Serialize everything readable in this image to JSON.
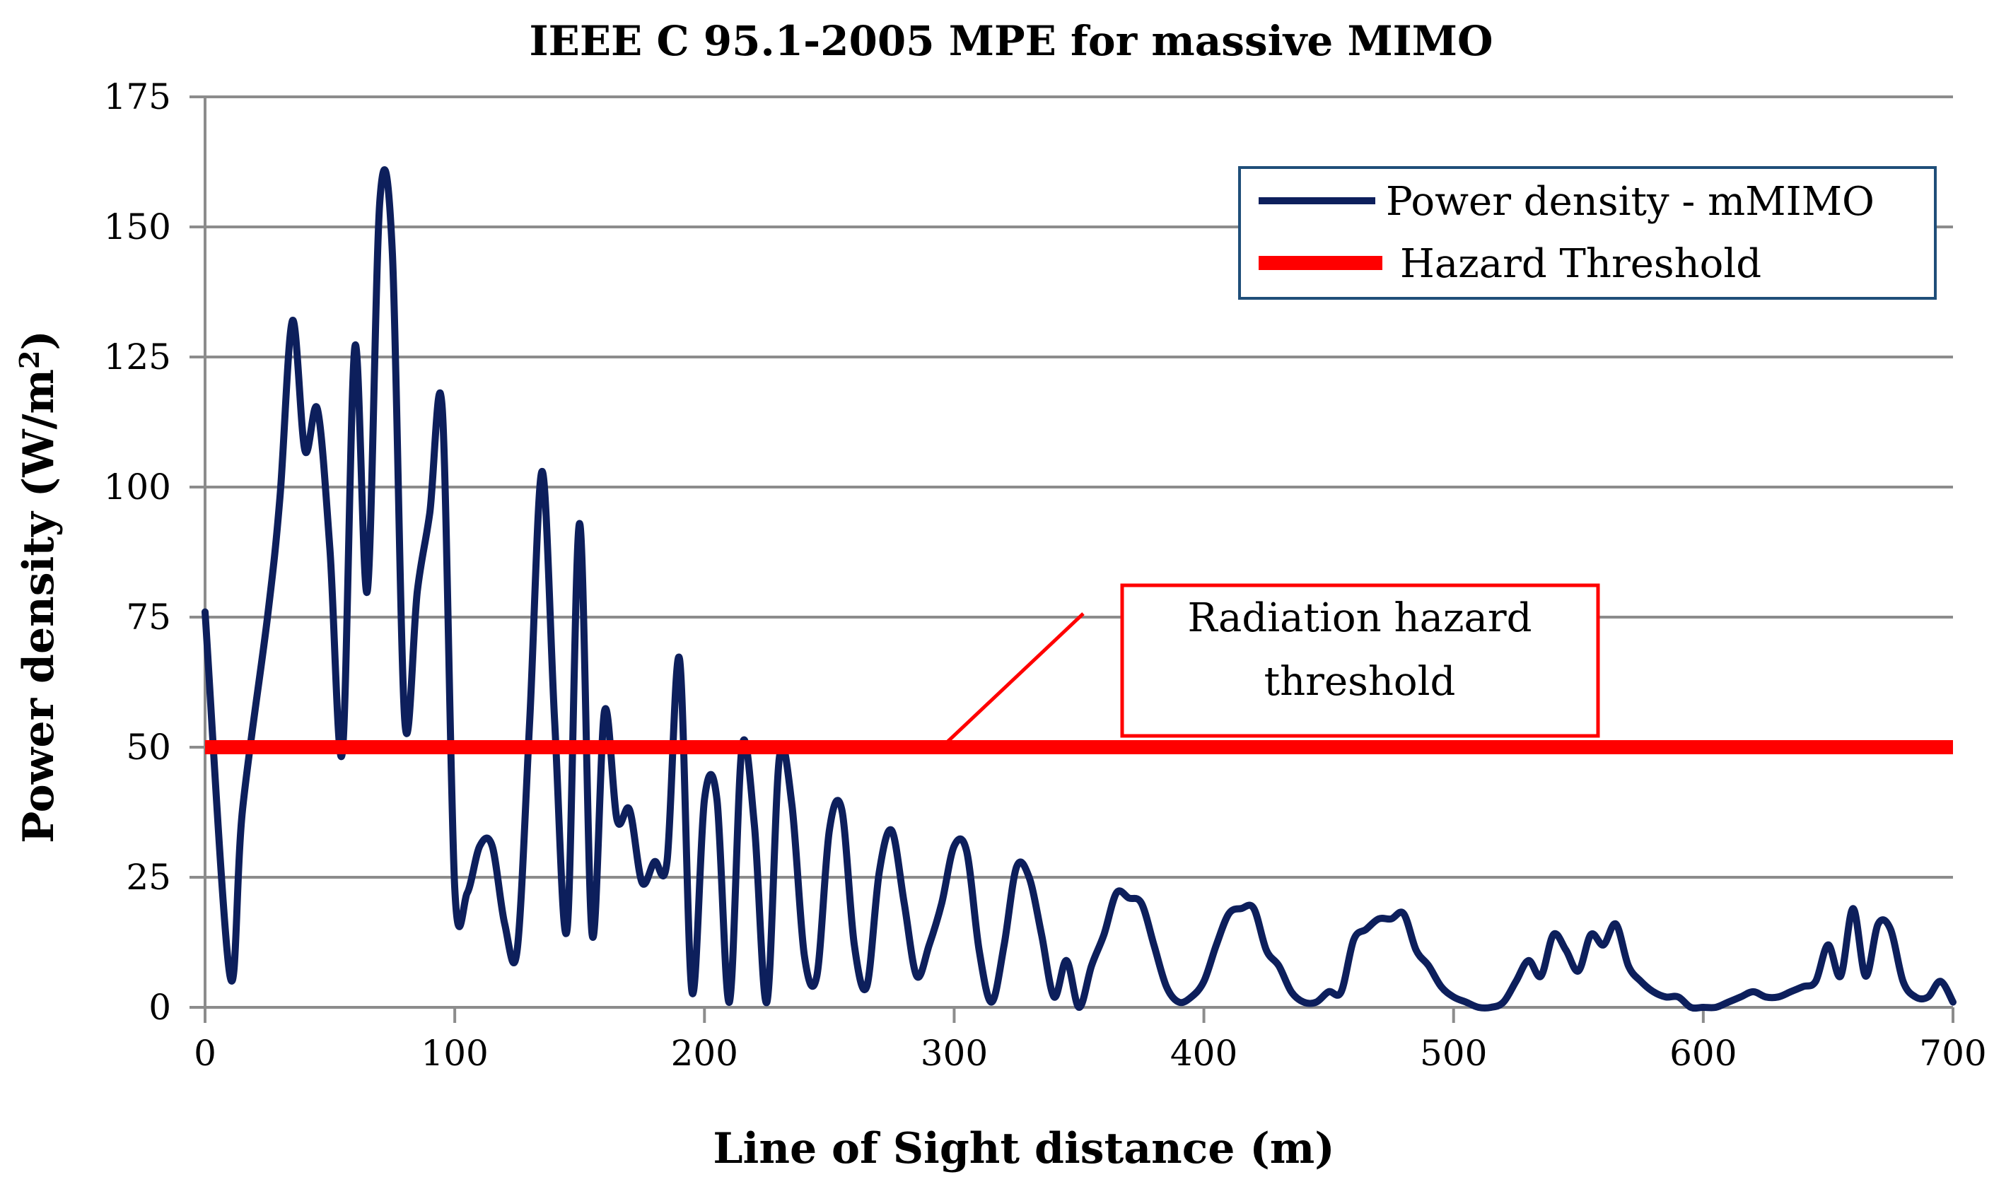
{
  "chart_data": {
    "type": "line",
    "title": "IEEE C 95.1-2005  MPE for massive MIMO",
    "xlabel": "Line of Sight distance (m)",
    "ylabel_main": "Power density (W/m",
    "ylabel_sup": "2",
    "ylabel_end": ")",
    "xlim": [
      0,
      700
    ],
    "ylim": [
      0,
      175
    ],
    "xticks": [
      "0",
      "100",
      "200",
      "300",
      "400",
      "500",
      "600",
      "700"
    ],
    "yticks": [
      "0",
      "25",
      "50",
      "75",
      "100",
      "125",
      "150",
      "175"
    ],
    "grid": true,
    "legend_position": "top-right",
    "series": [
      {
        "name": "Power density - mMIMO",
        "color": "#0d1f5c",
        "x": [
          0,
          10,
          15,
          25,
          30,
          35,
          40,
          45,
          50,
          55,
          60,
          65,
          70,
          75,
          80,
          85,
          90,
          95,
          100,
          105,
          110,
          115,
          120,
          125,
          130,
          135,
          140,
          145,
          150,
          155,
          160,
          165,
          170,
          175,
          180,
          185,
          190,
          195,
          200,
          205,
          210,
          215,
          220,
          225,
          230,
          235,
          240,
          245,
          250,
          255,
          260,
          265,
          270,
          275,
          280,
          285,
          290,
          295,
          300,
          305,
          310,
          315,
          320,
          325,
          330,
          335,
          340,
          345,
          350,
          355,
          360,
          365,
          370,
          375,
          380,
          385,
          390,
          395,
          400,
          405,
          410,
          415,
          420,
          425,
          430,
          435,
          440,
          445,
          450,
          455,
          460,
          465,
          470,
          475,
          480,
          485,
          490,
          495,
          500,
          505,
          510,
          515,
          520,
          525,
          530,
          535,
          540,
          545,
          550,
          555,
          560,
          565,
          570,
          575,
          580,
          585,
          590,
          595,
          600,
          605,
          610,
          615,
          620,
          625,
          630,
          635,
          640,
          645,
          650,
          655,
          660,
          665,
          670,
          675,
          680,
          685,
          690,
          695,
          700
        ],
        "y": [
          76,
          6,
          38,
          75,
          98,
          132,
          107,
          115,
          88,
          49,
          127,
          80,
          155,
          145,
          55,
          80,
          95,
          115,
          23,
          22,
          31,
          31,
          16,
          11,
          55,
          103,
          55,
          15,
          93,
          14,
          57,
          36,
          38,
          24,
          28,
          28,
          67,
          3,
          40,
          40,
          1,
          50,
          35,
          1,
          48,
          39,
          10,
          6,
          34,
          38,
          12,
          4,
          26,
          34,
          20,
          6,
          12,
          20,
          31,
          30,
          11,
          1,
          12,
          27,
          25,
          14,
          2,
          9,
          0,
          8,
          14,
          22,
          21,
          20,
          12,
          4,
          1,
          2,
          5,
          12,
          18,
          19,
          19,
          11,
          8,
          3,
          1,
          1,
          3,
          3,
          13,
          15,
          17,
          17,
          18,
          11,
          8,
          4,
          2,
          1,
          0,
          0,
          1,
          5,
          9,
          6,
          14,
          11,
          7,
          14,
          12,
          16,
          8,
          5,
          3,
          2,
          2,
          0,
          0,
          0,
          1,
          2,
          3,
          2,
          2,
          3,
          4,
          5,
          12,
          6,
          19,
          6,
          16,
          15,
          5,
          2,
          2,
          5,
          1
        ]
      },
      {
        "name": "Hazard Threshold",
        "color": "#ff0000",
        "x": [
          0,
          700
        ],
        "y": [
          50,
          50
        ]
      }
    ],
    "annotations": [
      {
        "lines": [
          "Radiation hazard",
          "threshold"
        ],
        "color": "#ff0000",
        "arrow_to": [
          295,
          50
        ]
      }
    ]
  },
  "colors": {
    "grid": "#8c8c8c",
    "legend_border": "#1f4e79",
    "annotation_border": "#ff0000"
  }
}
